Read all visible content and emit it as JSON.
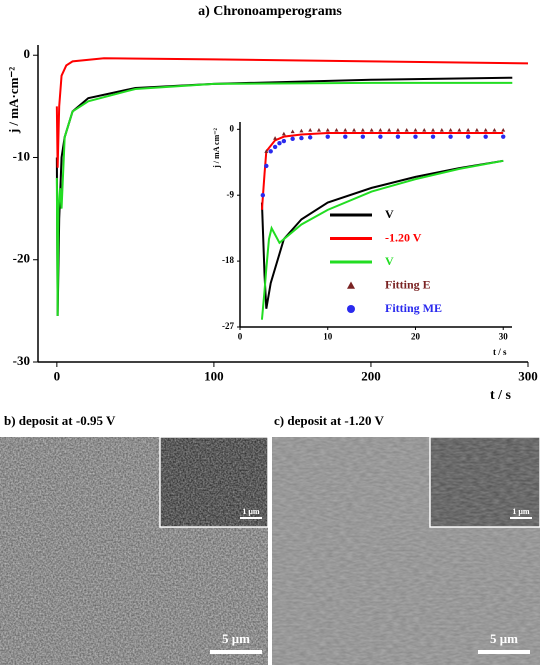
{
  "chart_data": [
    {
      "type": "line",
      "title": "a) Chronoamperograms",
      "y_label": "j / mA·cm⁻²",
      "x_label": "t / s",
      "xlim": [
        -12,
        300
      ],
      "ylim": [
        -30,
        1
      ],
      "xticks": [
        0,
        100,
        200,
        300
      ],
      "yticks": [
        0,
        -10,
        -20,
        -30
      ],
      "series": [
        {
          "name": "V",
          "color": "#000000",
          "mode": "line",
          "x": [
            0,
            0.5,
            1.5,
            3,
            5,
            10,
            20,
            50,
            100,
            200,
            290
          ],
          "values": [
            -10,
            -25.5,
            -16,
            -10,
            -8,
            -5.5,
            -4.2,
            -3.2,
            -2.8,
            -2.4,
            -2.2
          ]
        },
        {
          "name": "-1.20 V",
          "color": "#ff0000",
          "mode": "line",
          "x": [
            0,
            0.5,
            1.5,
            3,
            6,
            10,
            30,
            100,
            200,
            300
          ],
          "values": [
            -5,
            -11,
            -5,
            -2,
            -1,
            -0.6,
            -0.3,
            -0.4,
            -0.6,
            -0.8
          ]
        },
        {
          "name": "V",
          "color": "#22dd22",
          "mode": "line",
          "x": [
            0,
            0.5,
            1,
            2,
            3,
            5,
            10,
            20,
            50,
            100,
            200,
            290
          ],
          "values": [
            -12,
            -25.5,
            -15,
            -13,
            -15,
            -8,
            -5.5,
            -4.5,
            -3.3,
            -2.8,
            -2.7,
            -2.7
          ]
        }
      ]
    },
    {
      "type": "line",
      "y_label": "j / mA cm⁻²",
      "x_label": "t / s",
      "xlim": [
        0,
        31
      ],
      "ylim": [
        -27,
        1
      ],
      "xticks": [
        0,
        10,
        20,
        30
      ],
      "yticks": [
        0,
        -9,
        -18,
        -27
      ],
      "series": [
        {
          "name": "V",
          "color": "#000000",
          "mode": "line",
          "x": [
            2.5,
            2.8,
            3,
            3.5,
            5,
            7,
            10,
            15,
            20,
            25,
            30
          ],
          "values": [
            -10,
            -20,
            -24.5,
            -21,
            -15,
            -12.3,
            -10,
            -8,
            -6.5,
            -5.3,
            -4.3
          ]
        },
        {
          "name": "-1.20 V",
          "color": "#ff0000",
          "mode": "line",
          "x": [
            2.5,
            2.8,
            3,
            4,
            5,
            7,
            10,
            20,
            30
          ],
          "values": [
            -11,
            -6,
            -3,
            -1.5,
            -1,
            -0.7,
            -0.5,
            -0.5,
            -0.5
          ]
        },
        {
          "name": "V",
          "color": "#22dd22",
          "mode": "line",
          "x": [
            2.5,
            2.8,
            3,
            3.3,
            3.6,
            4.5,
            5,
            7,
            10,
            15,
            20,
            25,
            30
          ],
          "values": [
            -26,
            -22,
            -19,
            -15,
            -13.5,
            -15.5,
            -15,
            -13,
            -11,
            -8.5,
            -6.8,
            -5.4,
            -4.3
          ]
        },
        {
          "name": "Fitting E",
          "color": "#7a2323",
          "mode": "triangle",
          "x": [
            3,
            4,
            5,
            6,
            7,
            8,
            9,
            10,
            11,
            12,
            13,
            14,
            15,
            16,
            17,
            18,
            19,
            20,
            21,
            22,
            23,
            24,
            25,
            26,
            27,
            28,
            29,
            30
          ],
          "values": [
            -3,
            -1.2,
            -0.6,
            -0.3,
            -0.2,
            -0.1,
            -0.1,
            -0.1,
            -0.1,
            -0.1,
            -0.1,
            -0.1,
            -0.1,
            -0.1,
            -0.1,
            -0.1,
            -0.1,
            -0.1,
            -0.1,
            -0.1,
            -0.1,
            -0.1,
            -0.1,
            -0.1,
            -0.1,
            -0.1,
            -0.1,
            -0.1
          ]
        },
        {
          "name": "Fitting ME",
          "color": "#2a2aee",
          "mode": "circle",
          "x": [
            2.6,
            3,
            3.5,
            4,
            4.5,
            5,
            6,
            7,
            8,
            10,
            12,
            14,
            16,
            18,
            20,
            22,
            24,
            26,
            28,
            30
          ],
          "values": [
            -9,
            -5,
            -3,
            -2.4,
            -1.9,
            -1.6,
            -1.3,
            -1.2,
            -1.1,
            -1,
            -1,
            -1,
            -1,
            -1,
            -1,
            -1,
            -1,
            -1,
            -1,
            -1
          ]
        }
      ]
    }
  ],
  "panels": [
    {
      "label": "b)  deposit at -0.95 V",
      "scale": "5 μm",
      "inset_scale": "1 μm"
    },
    {
      "label": "c)  deposit at -1.20 V",
      "scale": "5 μm",
      "inset_scale": "1 μm"
    }
  ]
}
